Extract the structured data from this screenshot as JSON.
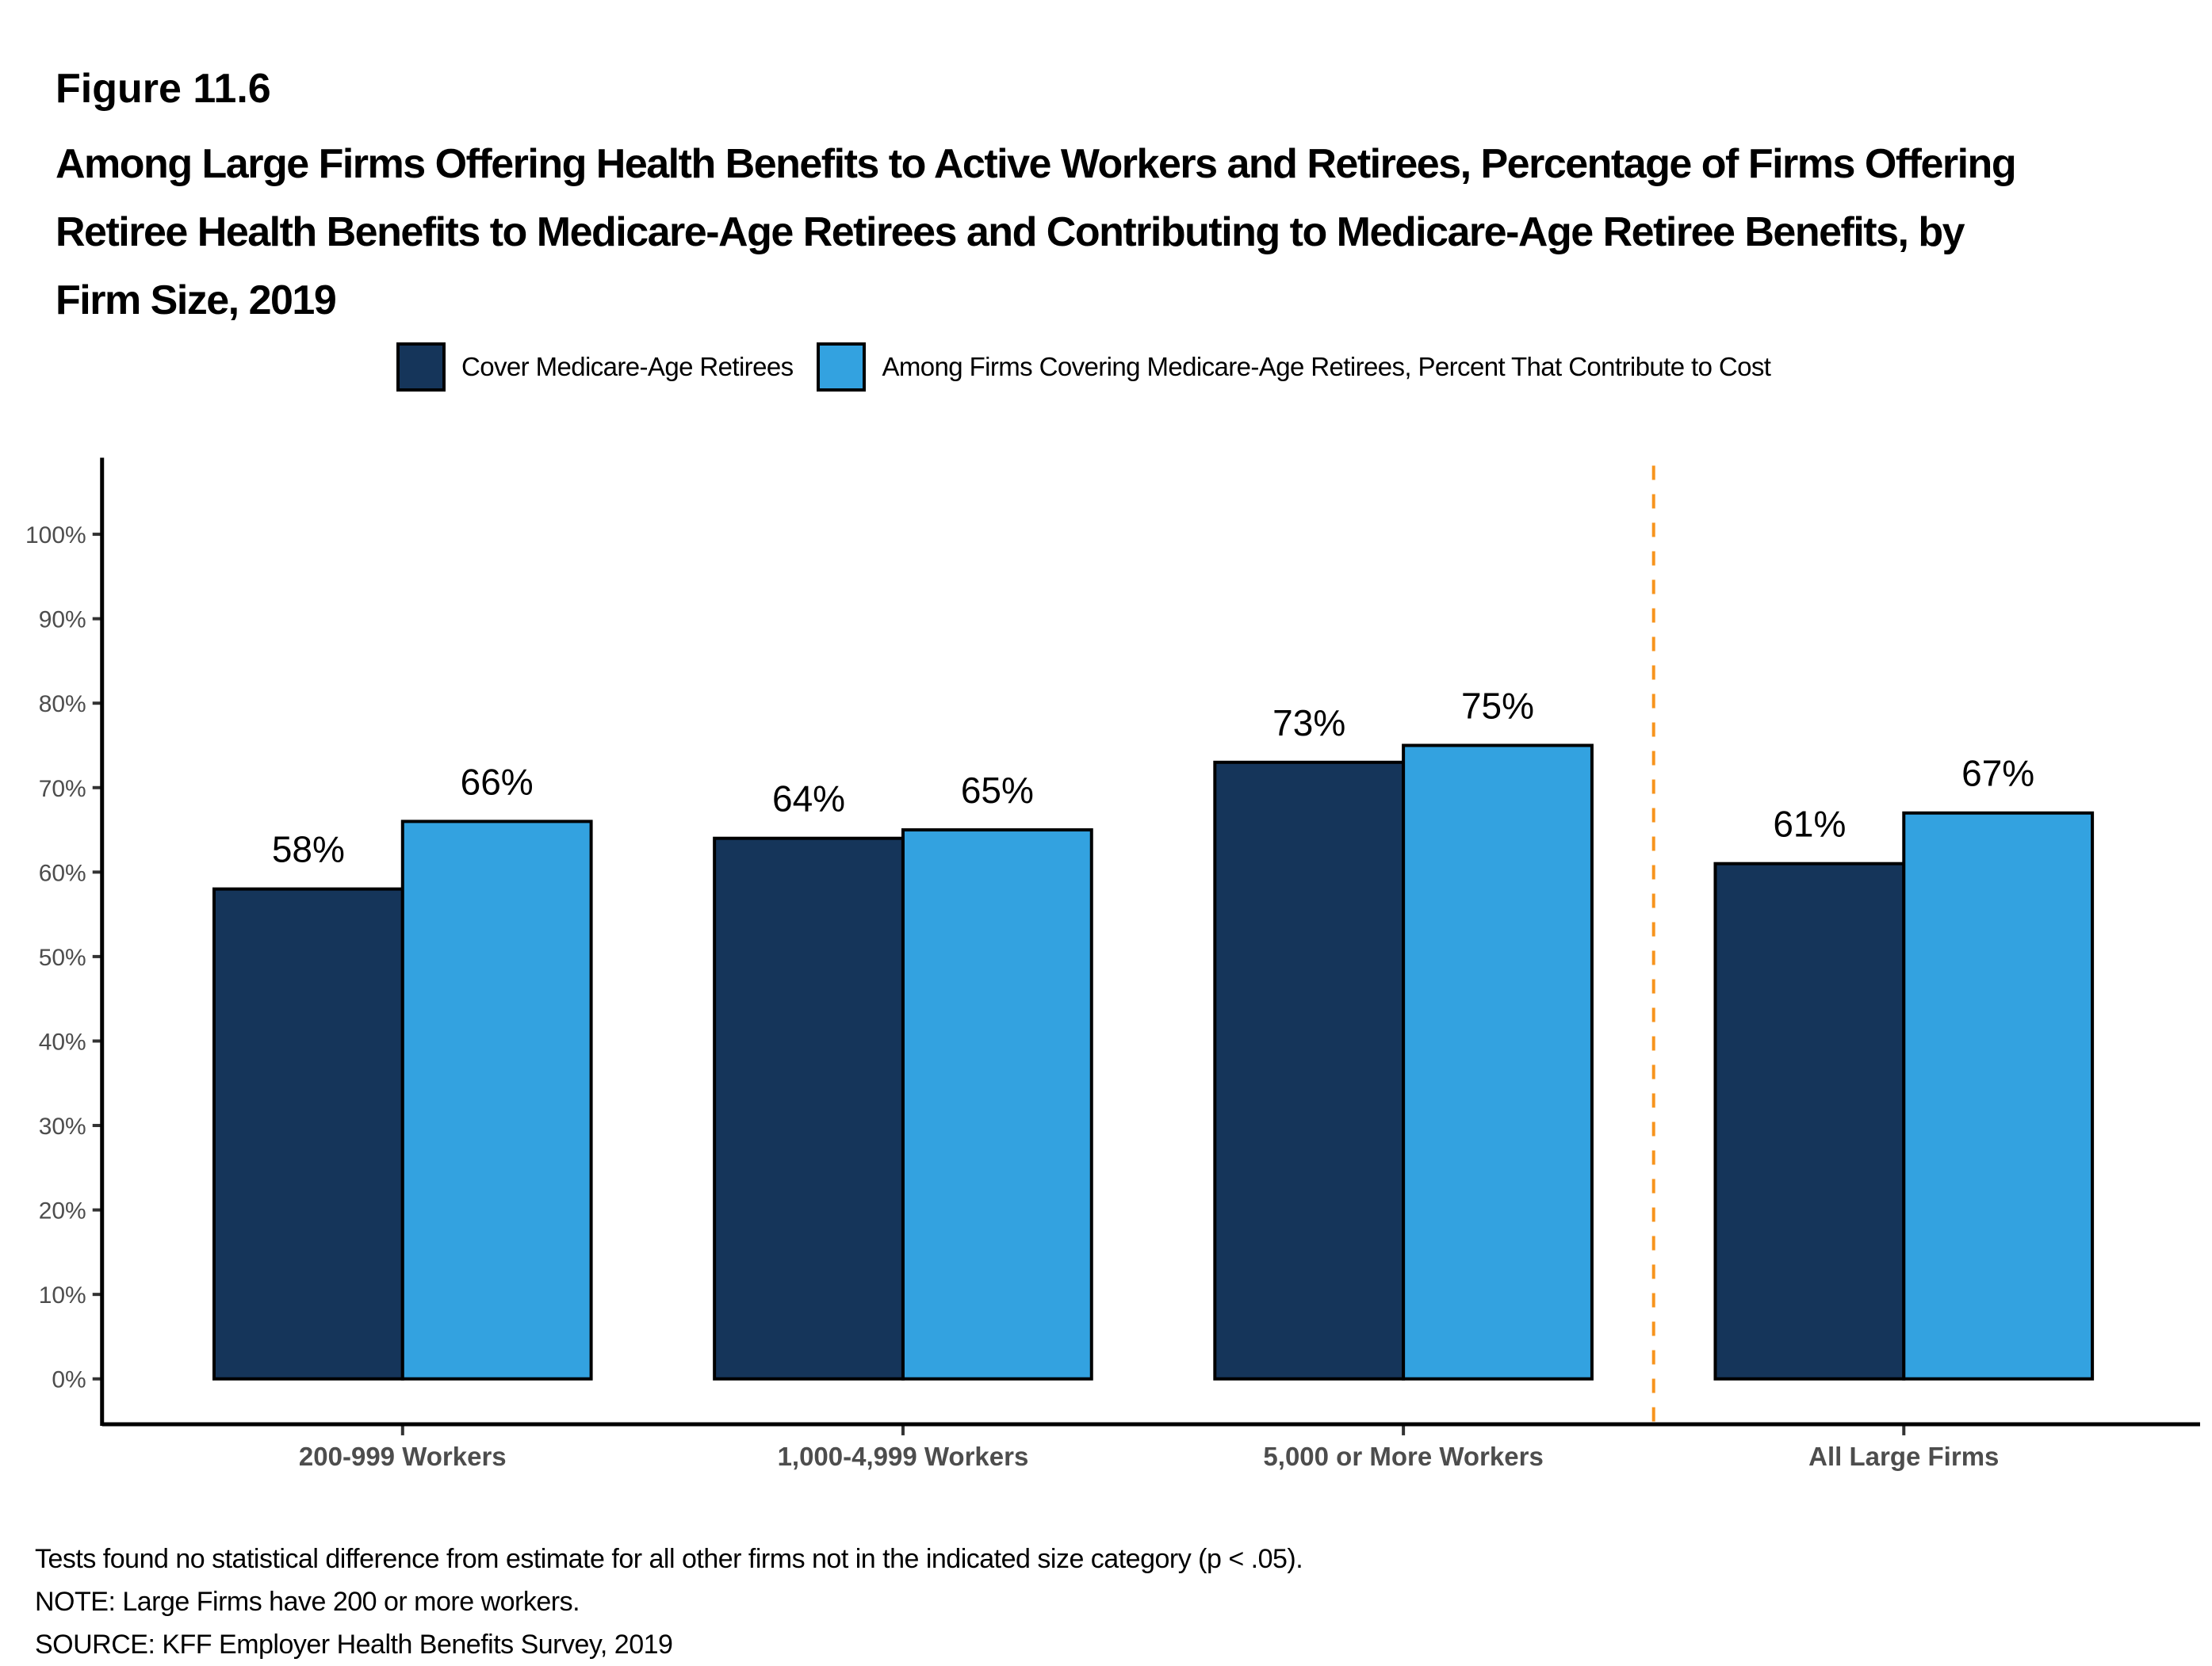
{
  "figure": {
    "label": "Figure 11.6",
    "title": "Among Large Firms Offering Health Benefits to Active Workers and Retirees, Percentage of Firms Offering Retiree Health Benefits to Medicare-Age Retirees and Contributing to Medicare-Age Retiree Benefits, by Firm Size, 2019"
  },
  "colors": {
    "series1": "#15355A",
    "series2": "#33A2E0",
    "divider": "#F7941D",
    "axis": "#000000"
  },
  "chart_data": {
    "type": "bar",
    "title": "Among Large Firms Offering Health Benefits to Active Workers and Retirees, Percentage of Firms Offering Retiree Health Benefits to Medicare-Age Retirees and Contributing to Medicare-Age Retiree Benefits, by Firm Size, 2019",
    "xlabel": "",
    "ylabel": "",
    "ylim": [
      0,
      100
    ],
    "yticks": [
      "0%",
      "10%",
      "20%",
      "30%",
      "40%",
      "50%",
      "60%",
      "70%",
      "80%",
      "90%",
      "100%"
    ],
    "categories": [
      "200-999 Workers",
      "1,000-4,999 Workers",
      "5,000 or More Workers",
      "All Large Firms"
    ],
    "series": [
      {
        "name": "Cover Medicare-Age Retirees",
        "values": [
          58,
          64,
          73,
          61
        ],
        "labels": [
          "58%",
          "64%",
          "73%",
          "61%"
        ]
      },
      {
        "name": "Among Firms Covering Medicare-Age Retirees, Percent That Contribute to Cost",
        "values": [
          66,
          65,
          75,
          67
        ],
        "labels": [
          "66%",
          "65%",
          "75%",
          "67%"
        ]
      }
    ],
    "divider_after_category": 2,
    "legend_position": "top",
    "grid": false
  },
  "notes": [
    "Tests found no statistical difference from estimate for all other firms not in the indicated size category (p < .05).",
    "NOTE: Large Firms have 200 or more workers.",
    "SOURCE: KFF Employer Health Benefits Survey, 2019"
  ]
}
